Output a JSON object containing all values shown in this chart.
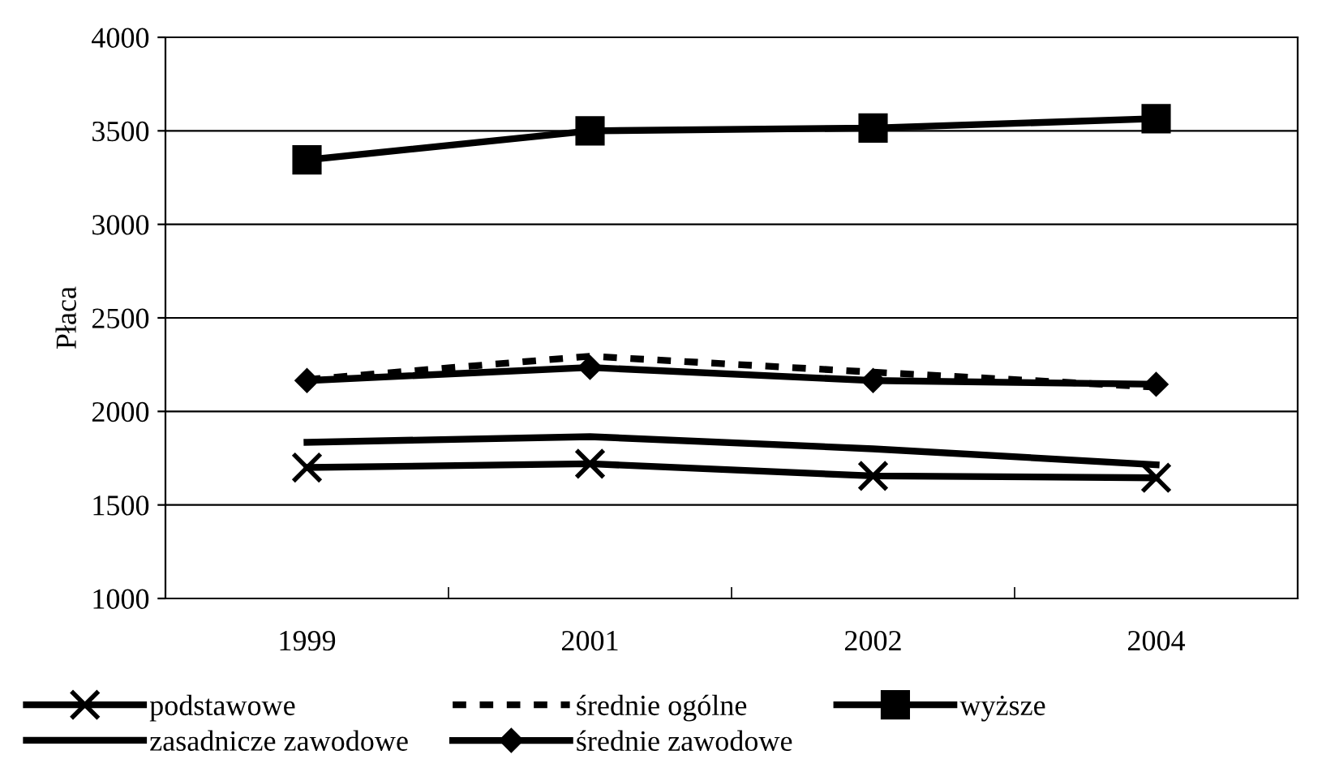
{
  "chart_data": {
    "type": "line",
    "ylabel": "Płaca",
    "categories": [
      "1999",
      "2001",
      "2002",
      "2004"
    ],
    "ylim": [
      1000,
      4000
    ],
    "yticks": [
      1000,
      1500,
      2000,
      2500,
      3000,
      3500,
      4000
    ],
    "grid": "y",
    "legend": "bottom",
    "series": [
      {
        "name": "podstawowe",
        "color": "#000000",
        "marker": "cross",
        "line_style": "solid",
        "values": [
          1700,
          1720,
          1655,
          1645
        ]
      },
      {
        "name": "zasadnicze zawodowe",
        "color": "#000000",
        "marker": "none",
        "line_style": "solid",
        "values": [
          1835,
          1865,
          1800,
          1715
        ]
      },
      {
        "name": "średnie ogólne",
        "color": "#000000",
        "marker": "none",
        "line_style": "dashed",
        "values": [
          2170,
          2295,
          2210,
          2130
        ]
      },
      {
        "name": "średnie zawodowe",
        "color": "#000000",
        "marker": "diamond",
        "line_style": "solid",
        "values": [
          2165,
          2235,
          2165,
          2145
        ]
      },
      {
        "name": "wyższe",
        "color": "#000000",
        "marker": "square",
        "line_style": "solid",
        "values": [
          3345,
          3500,
          3515,
          3565
        ]
      }
    ]
  }
}
